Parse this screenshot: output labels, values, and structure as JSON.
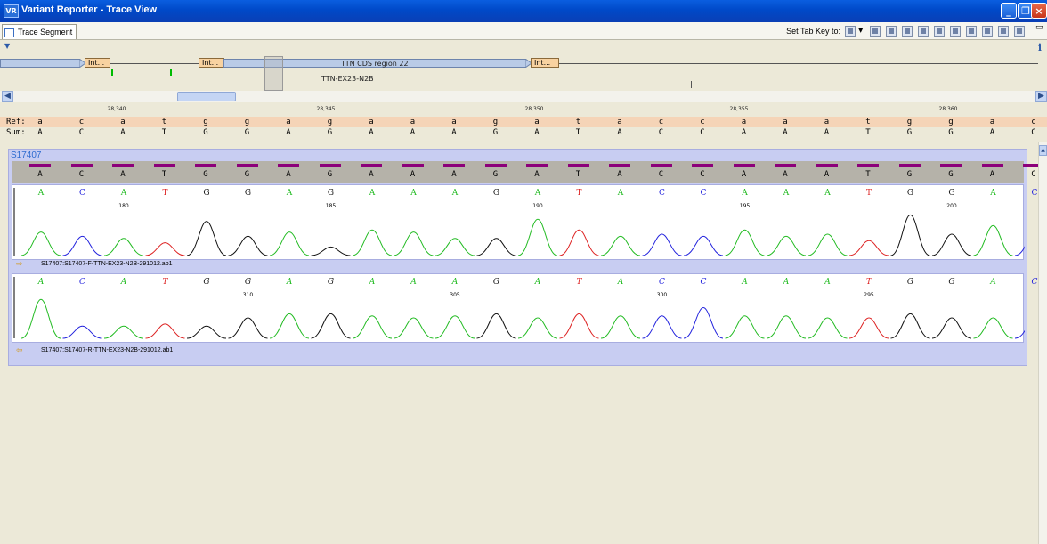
{
  "window": {
    "title": "Variant Reporter - Trace View",
    "app_icon": "VR"
  },
  "tab": {
    "label": "Trace Segment"
  },
  "toolbar": {
    "tab_key_label": "Set Tab Key to:"
  },
  "overview": {
    "region_label": "TTN  CDS  region  22",
    "amplicon_label": "TTN-EX23-N2B",
    "intron_label": "Int..."
  },
  "ruler": {
    "ticks": [
      "28,340",
      "28,345",
      "28,350",
      "28,355",
      "28,360"
    ]
  },
  "ref": {
    "label": "Ref:",
    "bases": [
      "a",
      "c",
      "a",
      "t",
      "g",
      "g",
      "a",
      "g",
      "a",
      "a",
      "a",
      "g",
      "a",
      "t",
      "a",
      "c",
      "c",
      "a",
      "a",
      "a",
      "t",
      "g",
      "g",
      "a",
      "c"
    ]
  },
  "sum": {
    "label": "Sum:",
    "bases": [
      "A",
      "C",
      "A",
      "T",
      "G",
      "G",
      "A",
      "G",
      "A",
      "A",
      "A",
      "G",
      "A",
      "T",
      "A",
      "C",
      "C",
      "A",
      "A",
      "A",
      "T",
      "G",
      "G",
      "A",
      "C"
    ]
  },
  "sample": {
    "name": "S17407",
    "consensus": [
      "A",
      "C",
      "A",
      "T",
      "G",
      "G",
      "A",
      "G",
      "A",
      "A",
      "A",
      "G",
      "A",
      "T",
      "A",
      "C",
      "C",
      "A",
      "A",
      "A",
      "T",
      "G",
      "G",
      "A",
      "C"
    ],
    "traces": [
      {
        "file": "S17407:S17407-F-TTN-EX23-N2B-291012.ab1",
        "calls": [
          "A",
          "C",
          "A",
          "T",
          "G",
          "G",
          "A",
          "G",
          "A",
          "A",
          "A",
          "G",
          "A",
          "T",
          "A",
          "C",
          "C",
          "A",
          "A",
          "A",
          "T",
          "G",
          "G",
          "A",
          "C"
        ],
        "positions": [
          {
            "index": 2,
            "label": "180"
          },
          {
            "index": 7,
            "label": "185"
          },
          {
            "index": 12,
            "label": "190"
          },
          {
            "index": 17,
            "label": "195"
          },
          {
            "index": 22,
            "label": "200"
          }
        ]
      },
      {
        "file": "S17407:S17407-R-TTN-EX23-N2B-291012.ab1",
        "calls": [
          "A",
          "C",
          "A",
          "T",
          "G",
          "G",
          "A",
          "G",
          "A",
          "A",
          "A",
          "G",
          "A",
          "T",
          "A",
          "C",
          "C",
          "A",
          "A",
          "A",
          "T",
          "G",
          "G",
          "A",
          "C"
        ],
        "positions": [
          {
            "index": 5,
            "label": "310"
          },
          {
            "index": 10,
            "label": "305"
          },
          {
            "index": 15,
            "label": "300"
          },
          {
            "index": 20,
            "label": "295"
          }
        ]
      }
    ]
  },
  "colors": {
    "A": "#22bb22",
    "C": "#2222dd",
    "G": "#111111",
    "T": "#dd2222"
  }
}
